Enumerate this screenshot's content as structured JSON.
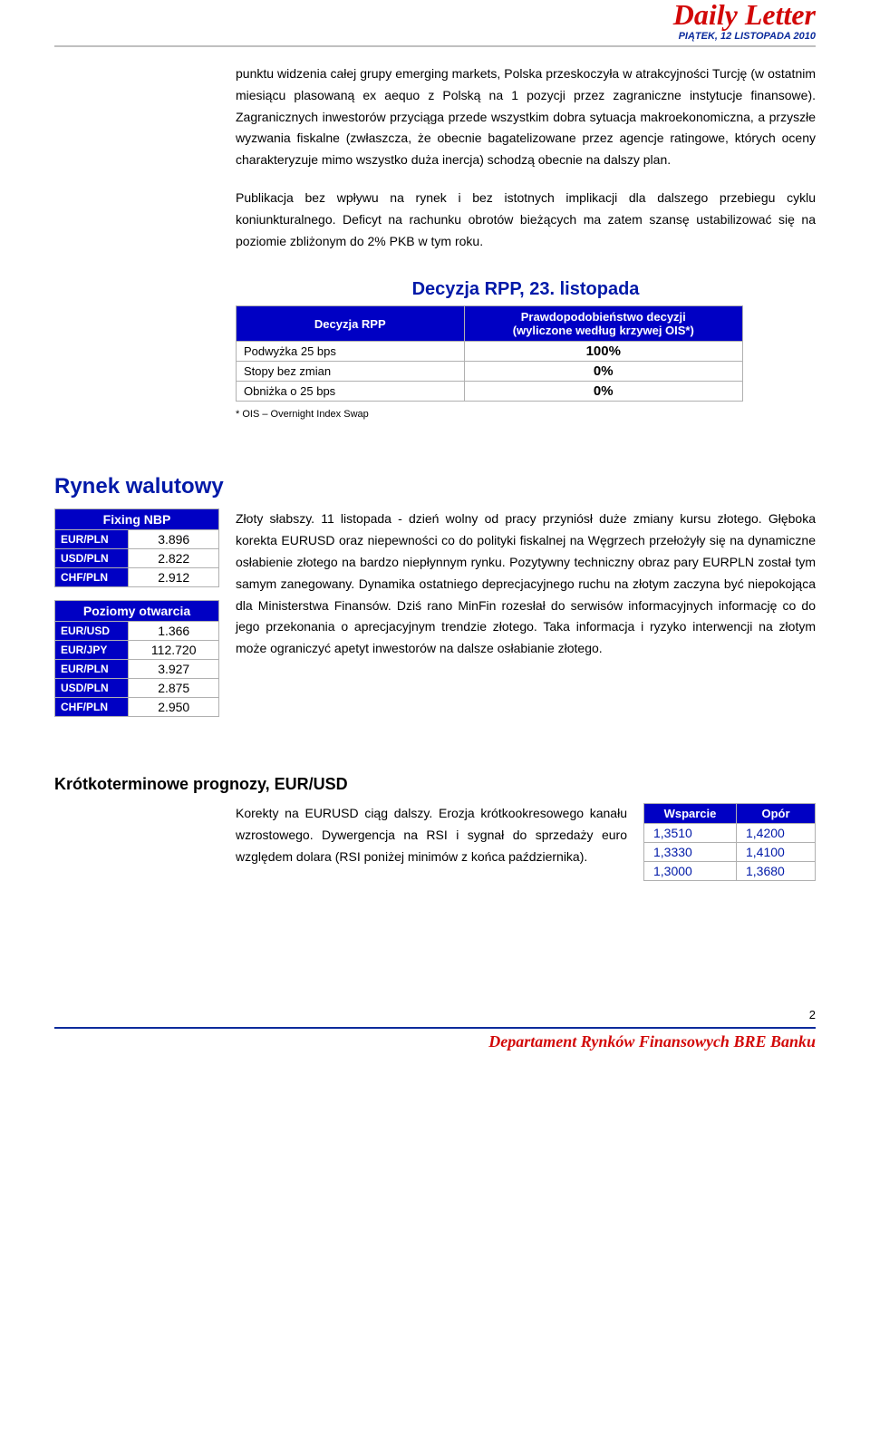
{
  "header": {
    "brand": "Daily Letter",
    "dateline": "PIĄTEK, 12 LISTOPADA 2010"
  },
  "body": {
    "p1": "punktu widzenia całej grupy emerging markets, Polska przeskoczyła w atrakcyjności Turcję (w ostatnim miesiącu plasowaną ex aequo z Polską na 1 pozycji przez zagraniczne instytucje finansowe). Zagranicznych inwestorów przyciąga przede wszystkim dobra sytuacja makroekonomiczna, a przyszłe wyzwania fiskalne (zwłaszcza, że obecnie bagatelizowane przez agencje ratingowe, których oceny charakteryzuje mimo wszystko duża inercja) schodzą obecnie na dalszy plan.",
    "p2": "Publikacja bez wpływu na rynek i bez istotnych implikacji dla dalszego przebiegu cyklu koniunkturalnego. Deficyt na rachunku obrotów bieżących ma zatem szansę ustabilizować się na poziomie zbliżonym do 2% PKB w tym roku."
  },
  "decision": {
    "title": "Decyzja RPP, 23. listopada",
    "col1": "Decyzja RPP",
    "col2_line1": "Prawdopodobieństwo decyzji",
    "col2_line2": "(wyliczone według krzywej OIS*)",
    "rows": [
      {
        "label": "Podwyżka 25 bps",
        "value": "100%"
      },
      {
        "label": "Stopy bez zmian",
        "value": "0%"
      },
      {
        "label": "Obniżka o 25 bps",
        "value": "0%"
      }
    ],
    "note": "* OIS – Overnight Index Swap"
  },
  "fx": {
    "title": "Rynek walutowy",
    "fixing_header": "Fixing NBP",
    "fixing": [
      {
        "k": "EUR/PLN",
        "v": "3.896"
      },
      {
        "k": "USD/PLN",
        "v": "2.822"
      },
      {
        "k": "CHF/PLN",
        "v": "2.912"
      }
    ],
    "open_header": "Poziomy otwarcia",
    "open": [
      {
        "k": "EUR/USD",
        "v": "1.366"
      },
      {
        "k": "EUR/JPY",
        "v": "112.720"
      },
      {
        "k": "EUR/PLN",
        "v": "3.927"
      },
      {
        "k": "USD/PLN",
        "v": "2.875"
      },
      {
        "k": "CHF/PLN",
        "v": "2.950"
      }
    ],
    "text": "Złoty słabszy. 11 listopada - dzień wolny od pracy przyniósł duże zmiany kursu złotego. Głęboka korekta EURUSD oraz niepewności co do polityki fiskalnej na Węgrzech przełożyły się na dynamiczne osłabienie złotego na bardzo niepłynnym rynku. Pozytywny techniczny obraz pary EURPLN został tym samym zanegowany. Dynamika ostatniego deprecjacyjnego ruchu na złotym zaczyna być niepokojąca dla Ministerstwa Finansów. Dziś rano MinFin rozesłał do serwisów informacyjnych informację co do jego przekonania o aprecjacyjnym trendzie złotego. Taka informacja i ryzyko interwencji na złotym może ograniczyć apetyt inwestorów na dalsze osłabianie złotego."
  },
  "forecast": {
    "title": "Krótkoterminowe prognozy, EUR/USD",
    "text": "Korekty na EURUSD ciąg dalszy.  Erozja krótkookresowego kanału wzrostowego. Dywergencja na RSI i sygnał do sprzedaży euro względem dolara (RSI poniżej minimów z końca października).",
    "h1": "Wsparcie",
    "h2": "Opór",
    "rows": [
      {
        "a": "1,3510",
        "b": "1,4200"
      },
      {
        "a": "1,3330",
        "b": "1,4100"
      },
      {
        "a": "1,3000",
        "b": "1,3680"
      }
    ]
  },
  "footer": {
    "page": "2",
    "dept": "Departament Rynków Finansowych BRE Banku"
  },
  "colors": {
    "blue": "#0000c4",
    "red": "#d20808",
    "text_blue": "#0019a8"
  },
  "type": "document-financial-newsletter"
}
